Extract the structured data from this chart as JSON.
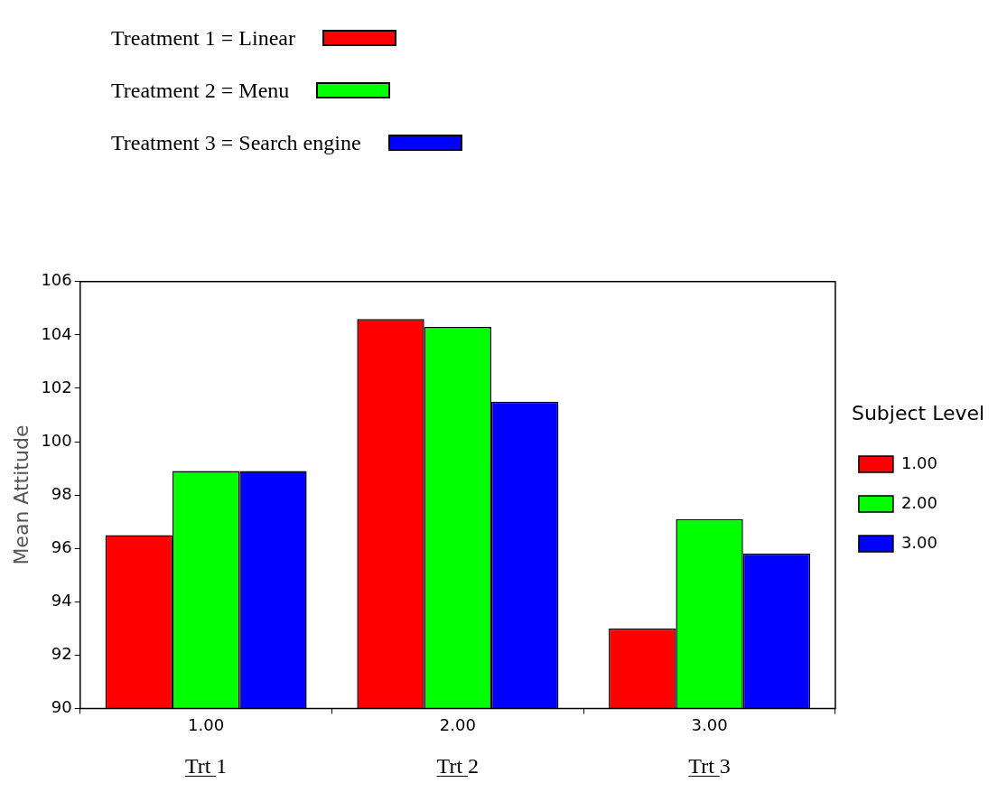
{
  "chart_data": {
    "type": "bar",
    "ylabel": "Mean Attitude",
    "legend_title": "Subject Level",
    "legend": "right",
    "grid": false,
    "categories": [
      "1.00",
      "2.00",
      "3.00"
    ],
    "series": [
      {
        "name": "1.00",
        "color": "#ff0000",
        "values": [
          96.5,
          104.6,
          93.0
        ]
      },
      {
        "name": "2.00",
        "color": "#00ff00",
        "values": [
          98.9,
          104.3,
          97.1
        ]
      },
      {
        "name": "3.00",
        "color": "#0000ff",
        "values": [
          98.9,
          101.5,
          95.8
        ]
      }
    ],
    "ylim": [
      90,
      106
    ],
    "yticks": [
      90,
      92,
      94,
      96,
      98,
      100,
      102,
      104,
      106
    ],
    "annotations": [
      "Treatment 1 = Linear",
      "Treatment 2 = Menu",
      "Treatment 3 = Search engine",
      "Trt 1",
      "Trt 2",
      "Trt 3"
    ]
  }
}
